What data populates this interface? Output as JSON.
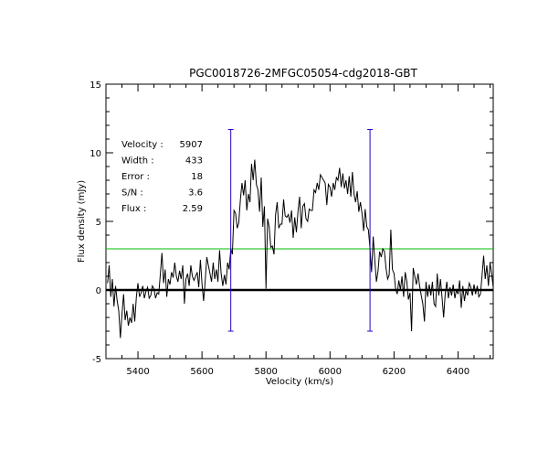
{
  "chart_data": {
    "type": "line",
    "title": "PGC0018726-2MFGC05054-cdg2018-GBT",
    "xlabel": "Velocity (km/s)",
    "ylabel": "Flux density (mJy)",
    "xlim": [
      5300,
      6510
    ],
    "ylim": [
      -5,
      15
    ],
    "x_ticks": [
      5400,
      5600,
      5800,
      6000,
      6200,
      6400
    ],
    "y_ticks": [
      -5,
      0,
      5,
      10,
      15
    ],
    "x_tick_labels": [
      "5400",
      "5600",
      "5800",
      "6000",
      "6200",
      "6400"
    ],
    "y_tick_labels": [
      "-5",
      "0",
      "5",
      "10",
      "15"
    ],
    "grid": false,
    "baseline": 0,
    "threshold_line": 3.0,
    "markers": [
      {
        "x": 5690,
        "ymin": -3.0,
        "ymax": 11.7
      },
      {
        "x": 6125,
        "ymin": -3.0,
        "ymax": 11.7
      }
    ],
    "stats": [
      {
        "label": "Velocity :",
        "value": "5907"
      },
      {
        "label": "Width   :",
        "value": "433"
      },
      {
        "label": "Error   :",
        "value": "18"
      },
      {
        "label": "S/N     :",
        "value": "3.6"
      },
      {
        "label": "Flux    :",
        "value": "2.59"
      }
    ],
    "colors": {
      "spectrum": "#000000",
      "baseline": "#000000",
      "threshold": "#00c000",
      "markers": "#2a00c8",
      "stats_text": "#2a00c8"
    },
    "series": [
      {
        "values": [
          [
            5305,
            0.5
          ],
          [
            5310,
            1.8
          ],
          [
            5315,
            -0.5
          ],
          [
            5320,
            0.8
          ],
          [
            5325,
            -1.2
          ],
          [
            5330,
            0.3
          ],
          [
            5335,
            -0.8
          ],
          [
            5340,
            -1.5
          ],
          [
            5345,
            -3.5
          ],
          [
            5350,
            -1.8
          ],
          [
            5355,
            -0.3
          ],
          [
            5360,
            -2.2
          ],
          [
            5365,
            -1.5
          ],
          [
            5370,
            -2.6
          ],
          [
            5375,
            -2.0
          ],
          [
            5380,
            -2.4
          ],
          [
            5385,
            -1.0
          ],
          [
            5390,
            -2.3
          ],
          [
            5395,
            -0.5
          ],
          [
            5400,
            0.5
          ],
          [
            5405,
            -0.5
          ],
          [
            5410,
            -0.2
          ],
          [
            5415,
            0.3
          ],
          [
            5420,
            -0.6
          ],
          [
            5425,
            -0.1
          ],
          [
            5430,
            0.2
          ],
          [
            5435,
            -0.6
          ],
          [
            5440,
            -0.4
          ],
          [
            5445,
            0.3
          ],
          [
            5450,
            0.1
          ],
          [
            5455,
            -0.6
          ],
          [
            5460,
            -0.2
          ],
          [
            5465,
            -0.3
          ],
          [
            5470,
            1.2
          ],
          [
            5475,
            2.7
          ],
          [
            5480,
            0.5
          ],
          [
            5485,
            1.5
          ],
          [
            5490,
            -0.5
          ],
          [
            5495,
            0.8
          ],
          [
            5500,
            0.4
          ],
          [
            5505,
            1.3
          ],
          [
            5510,
            0.9
          ],
          [
            5515,
            2.0
          ],
          [
            5520,
            1.0
          ],
          [
            5525,
            0.6
          ],
          [
            5530,
            1.4
          ],
          [
            5535,
            0.8
          ],
          [
            5540,
            1.8
          ],
          [
            5545,
            -1.0
          ],
          [
            5550,
            0.8
          ],
          [
            5555,
            1.2
          ],
          [
            5560,
            0.3
          ],
          [
            5565,
            1.8
          ],
          [
            5570,
            1.0
          ],
          [
            5575,
            0.7
          ],
          [
            5580,
            1.0
          ],
          [
            5585,
            1.3
          ],
          [
            5590,
            0.2
          ],
          [
            5595,
            2.2
          ],
          [
            5600,
            0.5
          ],
          [
            5605,
            -0.8
          ],
          [
            5610,
            0.6
          ],
          [
            5615,
            2.4
          ],
          [
            5620,
            1.8
          ],
          [
            5625,
            1.2
          ],
          [
            5630,
            0.6
          ],
          [
            5635,
            2.0
          ],
          [
            5640,
            0.8
          ],
          [
            5645,
            1.5
          ],
          [
            5650,
            0.6
          ],
          [
            5655,
            2.9
          ],
          [
            5660,
            1.2
          ],
          [
            5665,
            0.3
          ],
          [
            5670,
            1.1
          ],
          [
            5675,
            0.4
          ],
          [
            5680,
            2.0
          ],
          [
            5685,
            1.5
          ],
          [
            5690,
            3.0
          ],
          [
            5695,
            2.6
          ],
          [
            5700,
            5.8
          ],
          [
            5705,
            5.6
          ],
          [
            5710,
            4.5
          ],
          [
            5715,
            4.9
          ],
          [
            5720,
            6.6
          ],
          [
            5725,
            7.8
          ],
          [
            5730,
            6.9
          ],
          [
            5735,
            8.0
          ],
          [
            5740,
            5.8
          ],
          [
            5745,
            7.0
          ],
          [
            5750,
            6.4
          ],
          [
            5755,
            9.2
          ],
          [
            5760,
            8.0
          ],
          [
            5765,
            9.5
          ],
          [
            5770,
            7.7
          ],
          [
            5775,
            7.3
          ],
          [
            5780,
            5.7
          ],
          [
            5785,
            8.2
          ],
          [
            5790,
            4.6
          ],
          [
            5795,
            6.1
          ],
          [
            5800,
            0.1
          ],
          [
            5805,
            5.2
          ],
          [
            5810,
            4.6
          ],
          [
            5815,
            3.1
          ],
          [
            5820,
            3.2
          ],
          [
            5825,
            2.6
          ],
          [
            5830,
            5.5
          ],
          [
            5835,
            6.4
          ],
          [
            5840,
            4.5
          ],
          [
            5845,
            4.8
          ],
          [
            5850,
            4.8
          ],
          [
            5855,
            6.6
          ],
          [
            5860,
            5.4
          ],
          [
            5865,
            5.3
          ],
          [
            5870,
            5.5
          ],
          [
            5875,
            4.9
          ],
          [
            5880,
            5.8
          ],
          [
            5885,
            3.8
          ],
          [
            5890,
            5.3
          ],
          [
            5895,
            4.2
          ],
          [
            5900,
            5.7
          ],
          [
            5905,
            6.8
          ],
          [
            5910,
            4.5
          ],
          [
            5915,
            6.1
          ],
          [
            5920,
            6.3
          ],
          [
            5925,
            5.2
          ],
          [
            5930,
            5.0
          ],
          [
            5935,
            5.9
          ],
          [
            5940,
            5.8
          ],
          [
            5945,
            5.8
          ],
          [
            5950,
            7.3
          ],
          [
            5955,
            7.1
          ],
          [
            5960,
            7.8
          ],
          [
            5965,
            7.3
          ],
          [
            5970,
            8.4
          ],
          [
            5975,
            8.2
          ],
          [
            5980,
            8.0
          ],
          [
            5985,
            7.8
          ],
          [
            5990,
            6.2
          ],
          [
            5995,
            7.7
          ],
          [
            6000,
            7.5
          ],
          [
            6005,
            6.8
          ],
          [
            6010,
            7.8
          ],
          [
            6015,
            7.3
          ],
          [
            6020,
            8.2
          ],
          [
            6025,
            8.0
          ],
          [
            6030,
            8.9
          ],
          [
            6035,
            7.5
          ],
          [
            6040,
            8.5
          ],
          [
            6045,
            7.4
          ],
          [
            6050,
            8.0
          ],
          [
            6055,
            7.0
          ],
          [
            6060,
            8.3
          ],
          [
            6065,
            6.8
          ],
          [
            6070,
            8.6
          ],
          [
            6075,
            7.0
          ],
          [
            6080,
            6.4
          ],
          [
            6085,
            7.2
          ],
          [
            6090,
            5.7
          ],
          [
            6095,
            6.4
          ],
          [
            6100,
            5.6
          ],
          [
            6105,
            4.3
          ],
          [
            6110,
            5.9
          ],
          [
            6115,
            4.6
          ],
          [
            6120,
            4.4
          ],
          [
            6125,
            3.0
          ],
          [
            6130,
            1.3
          ],
          [
            6135,
            3.9
          ],
          [
            6140,
            2.2
          ],
          [
            6145,
            0.6
          ],
          [
            6150,
            1.4
          ],
          [
            6155,
            2.8
          ],
          [
            6160,
            2.4
          ],
          [
            6165,
            3.0
          ],
          [
            6170,
            2.8
          ],
          [
            6175,
            1.6
          ],
          [
            6180,
            0.8
          ],
          [
            6185,
            1.1
          ],
          [
            6190,
            4.4
          ],
          [
            6195,
            1.5
          ],
          [
            6200,
            1.2
          ],
          [
            6205,
            0.1
          ],
          [
            6210,
            -0.3
          ],
          [
            6215,
            0.7
          ],
          [
            6220,
            0.0
          ],
          [
            6225,
            1.0
          ],
          [
            6230,
            -0.5
          ],
          [
            6235,
            1.3
          ],
          [
            6240,
            0.6
          ],
          [
            6245,
            -0.7
          ],
          [
            6250,
            -0.2
          ],
          [
            6255,
            -3.0
          ],
          [
            6260,
            1.6
          ],
          [
            6265,
            1.0
          ],
          [
            6270,
            0.4
          ],
          [
            6275,
            1.2
          ],
          [
            6280,
            0.3
          ],
          [
            6285,
            -0.4
          ],
          [
            6290,
            -1.0
          ],
          [
            6295,
            -2.3
          ],
          [
            6300,
            0.6
          ],
          [
            6305,
            -0.5
          ],
          [
            6310,
            0.4
          ],
          [
            6315,
            -0.4
          ],
          [
            6320,
            0.6
          ],
          [
            6325,
            -1.0
          ],
          [
            6330,
            -1.2
          ],
          [
            6335,
            1.2
          ],
          [
            6340,
            -0.4
          ],
          [
            6345,
            0.8
          ],
          [
            6350,
            -0.5
          ],
          [
            6355,
            -2.0
          ],
          [
            6360,
            -0.3
          ],
          [
            6365,
            0.6
          ],
          [
            6370,
            -0.6
          ],
          [
            6375,
            0.2
          ],
          [
            6380,
            -0.4
          ],
          [
            6385,
            0.4
          ],
          [
            6390,
            -0.6
          ],
          [
            6395,
            0.0
          ],
          [
            6400,
            -0.3
          ],
          [
            6405,
            0.7
          ],
          [
            6410,
            -1.3
          ],
          [
            6415,
            0.3
          ],
          [
            6420,
            -0.8
          ],
          [
            6425,
            0.0
          ],
          [
            6430,
            -0.4
          ],
          [
            6435,
            0.5
          ],
          [
            6440,
            0.2
          ],
          [
            6445,
            -0.4
          ],
          [
            6450,
            0.4
          ],
          [
            6455,
            -0.3
          ],
          [
            6460,
            0.3
          ],
          [
            6465,
            -0.5
          ],
          [
            6470,
            -0.3
          ],
          [
            6475,
            1.0
          ],
          [
            6480,
            2.5
          ],
          [
            6485,
            0.8
          ],
          [
            6490,
            1.8
          ],
          [
            6495,
            0.3
          ],
          [
            6500,
            2.0
          ],
          [
            6505,
            1.2
          ],
          [
            6510,
            0.2
          ]
        ]
      }
    ]
  }
}
